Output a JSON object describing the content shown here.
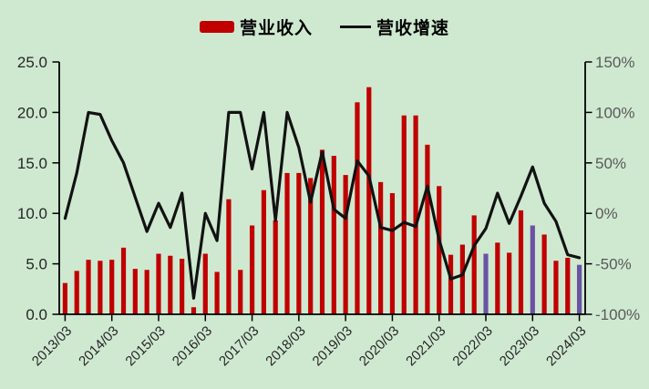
{
  "colors": {
    "background": "#CFE9D1",
    "bar": "#C00000",
    "bar_highlight": "#6B52A3",
    "line": "#121212",
    "axis": "#000000",
    "left_tick_text": "#262626",
    "right_tick_text": "#595959",
    "x_tick_text": "#262626"
  },
  "legend": {
    "items": [
      {
        "label": "营业收入",
        "marker": "bar-swatch",
        "color": "#C00000"
      },
      {
        "label": "营收增速",
        "marker": "line-swatch",
        "color": "#121212"
      }
    ]
  },
  "chart_data": {
    "type": "bar+line",
    "grid": "off",
    "legend_position": "top-center",
    "categories": [
      "2013/03",
      "2013/06",
      "2013/09",
      "2013/12",
      "2014/03",
      "2014/06",
      "2014/09",
      "2014/12",
      "2015/03",
      "2015/06",
      "2015/09",
      "2015/12",
      "2016/03",
      "2016/06",
      "2016/09",
      "2016/12",
      "2017/03",
      "2017/06",
      "2017/09",
      "2017/12",
      "2018/03",
      "2018/06",
      "2018/09",
      "2018/12",
      "2019/03",
      "2019/06",
      "2019/09",
      "2019/12",
      "2020/03",
      "2020/06",
      "2020/09",
      "2020/12",
      "2021/03",
      "2021/06",
      "2021/09",
      "2021/12",
      "2022/03",
      "2022/06",
      "2022/09",
      "2022/12",
      "2023/03",
      "2023/06",
      "2023/09",
      "2023/12",
      "2024/03"
    ],
    "x_axis": {
      "tick_label_step": 4,
      "tick_labels": [
        "2013/03",
        "2014/03",
        "2015/03",
        "2016/03",
        "2017/03",
        "2018/03",
        "2019/03",
        "2020/03",
        "2021/03",
        "2022/03",
        "2023/03",
        "2024/03"
      ],
      "label_rotation_deg": -45
    },
    "left_y_axis": {
      "series": "营业收入",
      "min": 0,
      "max": 25,
      "step": 5,
      "tick_labels": [
        "0.0",
        "5.0",
        "10.0",
        "15.0",
        "20.0",
        "25.0"
      ]
    },
    "right_y_axis": {
      "series": "营收增速",
      "min": -100,
      "max": 150,
      "step": 50,
      "tick_labels": [
        "-100%",
        "-50%",
        "0%",
        "50%",
        "100%",
        "150%"
      ]
    },
    "series": [
      {
        "name": "营业收入",
        "type": "bar",
        "axis": "left",
        "color": "#C00000",
        "highlight_color": "#6B52A3",
        "highlight_indices": [
          36,
          40,
          44
        ],
        "values": [
          3.1,
          4.3,
          5.4,
          5.3,
          5.4,
          6.6,
          4.5,
          4.4,
          6.0,
          5.8,
          5.5,
          0.7,
          6.0,
          4.2,
          11.4,
          4.4,
          8.8,
          12.3,
          9.3,
          14.0,
          14.0,
          13.5,
          16.3,
          15.7,
          13.8,
          21.0,
          22.5,
          13.1,
          12.0,
          19.7,
          19.7,
          16.8,
          12.7,
          5.9,
          6.9,
          9.8,
          6.0,
          7.1,
          6.1,
          10.3,
          8.8,
          7.9,
          5.3,
          5.6,
          4.9
        ]
      },
      {
        "name": "营收增速",
        "type": "line",
        "axis": "right",
        "unit": "%",
        "color": "#121212",
        "values": [
          -5,
          40,
          100,
          98,
          72,
          50,
          16,
          -18,
          10,
          -14,
          20,
          -84,
          0,
          -27,
          100,
          100,
          44,
          100,
          -7,
          100,
          65,
          11,
          61,
          4,
          -5,
          52,
          37,
          -14,
          -17,
          -9,
          -13,
          27,
          -26,
          -65,
          -61,
          -32,
          -15,
          20,
          -10,
          17,
          46,
          10,
          -8,
          -41,
          -44
        ]
      }
    ]
  }
}
